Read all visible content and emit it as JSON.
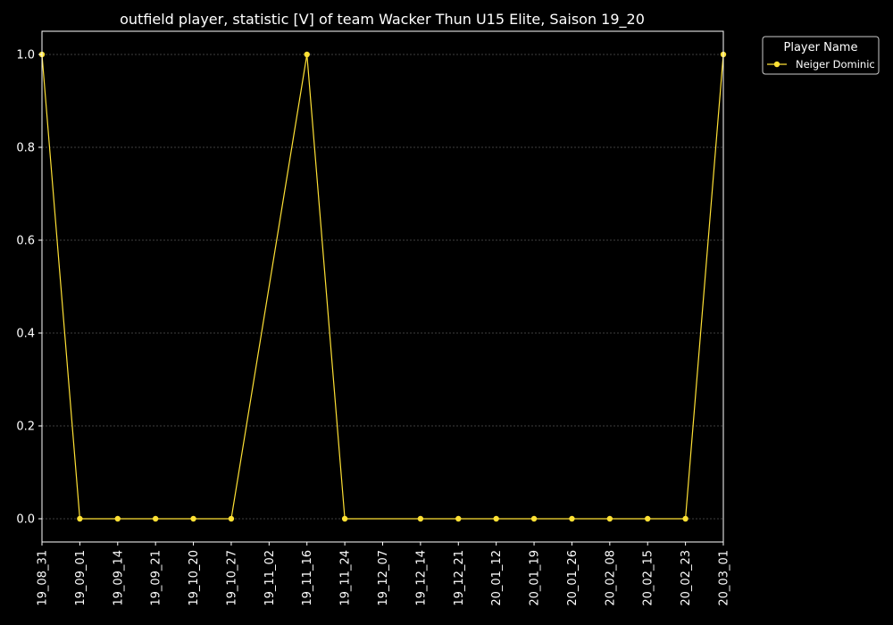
{
  "chart_data": {
    "type": "line",
    "title": "outfield player, statistic [V] of team Wacker Thun U15 Elite, Saison 19_20",
    "xlabel": "",
    "ylabel": "",
    "categories": [
      "19_08_31",
      "19_09_01",
      "19_09_14",
      "19_09_21",
      "19_10_20",
      "19_10_27",
      "19_11_02",
      "19_11_16",
      "19_11_24",
      "19_12_07",
      "19_12_14",
      "19_12_21",
      "20_01_12",
      "20_01_19",
      "20_01_26",
      "20_02_08",
      "20_02_15",
      "20_02_23",
      "20_03_01"
    ],
    "series": [
      {
        "name": "Neiger Dominic",
        "color": "#ffe135",
        "values": [
          1.0,
          0.0,
          0.0,
          0.0,
          0.0,
          0.0,
          null,
          1.0,
          0.0,
          null,
          0.0,
          0.0,
          0.0,
          0.0,
          0.0,
          0.0,
          0.0,
          0.0,
          1.0
        ]
      }
    ],
    "ylim": [
      -0.05,
      1.05
    ],
    "yticks": [
      0.0,
      0.2,
      0.4,
      0.6,
      0.8,
      1.0
    ],
    "ytick_labels": [
      "0.0",
      "0.2",
      "0.4",
      "0.6",
      "0.8",
      "1.0"
    ],
    "grid": true,
    "legend": {
      "title": "Player Name",
      "placement": "outside-top-right"
    },
    "colors": {
      "background": "#000000",
      "axes": "#ffffff",
      "grid": "#808080"
    }
  }
}
